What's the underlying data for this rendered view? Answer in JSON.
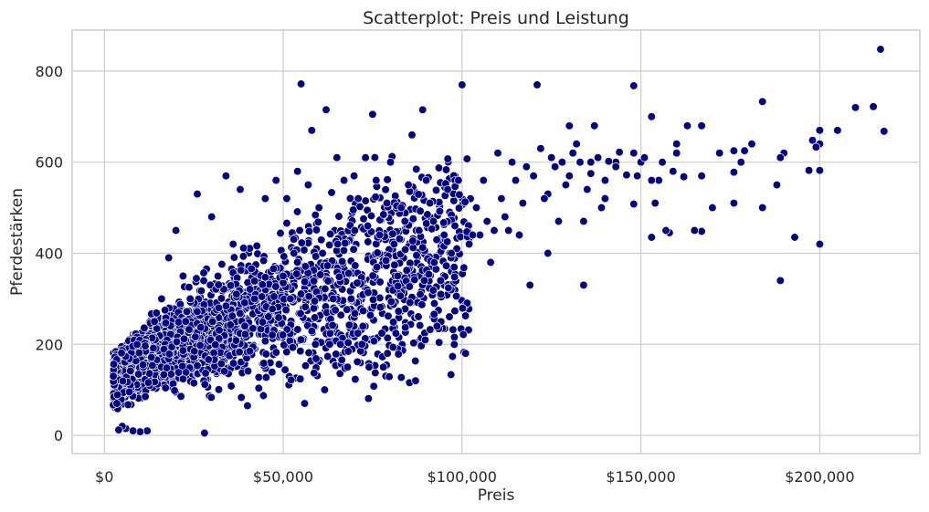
{
  "chart_data": {
    "type": "scatter",
    "title": "Scatterplot: Preis und Leistung",
    "xlabel": "Preis",
    "ylabel": "Pferdestärken",
    "xlim": [
      -9000,
      228000
    ],
    "ylim": [
      -40,
      890
    ],
    "x_ticks": [
      {
        "value": 0,
        "label": "$0"
      },
      {
        "value": 50000,
        "label": "$50,000"
      },
      {
        "value": 100000,
        "label": "$100,000"
      },
      {
        "value": 150000,
        "label": "$150,000"
      },
      {
        "value": 200000,
        "label": "$200,000"
      }
    ],
    "y_ticks": [
      {
        "value": 0,
        "label": "0"
      },
      {
        "value": 200,
        "label": "200"
      },
      {
        "value": 400,
        "label": "400"
      },
      {
        "value": 600,
        "label": "600"
      },
      {
        "value": 800,
        "label": "800"
      }
    ],
    "grid": true,
    "marker_color": "#000080",
    "marker_edge_color": "#ffffff",
    "points": [
      [
        217000,
        848
      ],
      [
        218000,
        668
      ],
      [
        215000,
        722
      ],
      [
        210000,
        720
      ],
      [
        205000,
        670
      ],
      [
        200000,
        670
      ],
      [
        200000,
        640
      ],
      [
        198000,
        648
      ],
      [
        199000,
        633
      ],
      [
        200000,
        582
      ],
      [
        197000,
        582
      ],
      [
        200000,
        420
      ],
      [
        193000,
        435
      ],
      [
        190000,
        620
      ],
      [
        189000,
        610
      ],
      [
        188000,
        550
      ],
      [
        189000,
        340
      ],
      [
        184000,
        733
      ],
      [
        184000,
        500
      ],
      [
        181000,
        640
      ],
      [
        179000,
        625
      ],
      [
        178000,
        600
      ],
      [
        176000,
        625
      ],
      [
        176000,
        578
      ],
      [
        176000,
        510
      ],
      [
        172000,
        620
      ],
      [
        170000,
        500
      ],
      [
        167000,
        680
      ],
      [
        167000,
        570
      ],
      [
        167000,
        448
      ],
      [
        163000,
        680
      ],
      [
        162000,
        568
      ],
      [
        165000,
        450
      ],
      [
        160000,
        640
      ],
      [
        160000,
        620
      ],
      [
        159000,
        580
      ],
      [
        158000,
        445
      ],
      [
        157000,
        450
      ],
      [
        156000,
        600
      ],
      [
        155000,
        560
      ],
      [
        153000,
        700
      ],
      [
        153000,
        560
      ],
      [
        154000,
        510
      ],
      [
        153000,
        435
      ],
      [
        150000,
        600
      ],
      [
        151000,
        610
      ],
      [
        149000,
        570
      ],
      [
        148000,
        768
      ],
      [
        148000,
        620
      ],
      [
        148000,
        508
      ],
      [
        146000,
        572
      ],
      [
        144000,
        622
      ],
      [
        143000,
        600
      ],
      [
        143000,
        590
      ],
      [
        141000,
        602
      ],
      [
        140000,
        560
      ],
      [
        140000,
        520
      ],
      [
        139000,
        500
      ],
      [
        138000,
        610
      ],
      [
        137000,
        680
      ],
      [
        136000,
        600
      ],
      [
        136000,
        575
      ],
      [
        135000,
        540
      ],
      [
        134000,
        470
      ],
      [
        134000,
        330
      ],
      [
        133000,
        600
      ],
      [
        132000,
        640
      ],
      [
        131000,
        620
      ],
      [
        130000,
        680
      ],
      [
        130000,
        570
      ],
      [
        129000,
        550
      ],
      [
        128000,
        600
      ],
      [
        127000,
        470
      ],
      [
        126000,
        590
      ],
      [
        125000,
        610
      ],
      [
        124000,
        530
      ],
      [
        124000,
        400
      ],
      [
        123000,
        520
      ],
      [
        122000,
        630
      ],
      [
        121000,
        770
      ],
      [
        120000,
        570
      ],
      [
        119000,
        330
      ],
      [
        118000,
        590
      ],
      [
        117000,
        510
      ],
      [
        116000,
        440
      ],
      [
        115000,
        560
      ],
      [
        114000,
        600
      ],
      [
        113000,
        450
      ],
      [
        112000,
        480
      ],
      [
        111000,
        520
      ],
      [
        110000,
        620
      ],
      [
        109000,
        450
      ],
      [
        108000,
        380
      ],
      [
        107000,
        470
      ],
      [
        106000,
        560
      ],
      [
        105000,
        440
      ],
      [
        104000,
        500
      ],
      [
        103000,
        440
      ],
      [
        102000,
        420
      ],
      [
        101000,
        180
      ],
      [
        100000,
        770
      ],
      [
        99000,
        560
      ],
      [
        98000,
        460
      ],
      [
        97000,
        400
      ],
      [
        96000,
        540
      ],
      [
        95000,
        440
      ],
      [
        94000,
        340
      ],
      [
        93000,
        240
      ],
      [
        92000,
        470
      ],
      [
        91000,
        510
      ],
      [
        90000,
        560
      ],
      [
        89000,
        715
      ],
      [
        88000,
        450
      ],
      [
        87000,
        120
      ],
      [
        86000,
        660
      ],
      [
        85000,
        550
      ],
      [
        84000,
        470
      ],
      [
        83000,
        500
      ],
      [
        82000,
        350
      ],
      [
        81000,
        420
      ],
      [
        80000,
        600
      ],
      [
        79000,
        510
      ],
      [
        78000,
        150
      ],
      [
        77000,
        440
      ],
      [
        76000,
        560
      ],
      [
        75000,
        705
      ],
      [
        74000,
        150
      ],
      [
        73000,
        610
      ],
      [
        72000,
        200
      ],
      [
        71000,
        520
      ],
      [
        70000,
        450
      ],
      [
        69000,
        300
      ],
      [
        68000,
        150
      ],
      [
        67000,
        560
      ],
      [
        66000,
        200
      ],
      [
        65000,
        610
      ],
      [
        64000,
        300
      ],
      [
        63000,
        200
      ],
      [
        62000,
        715
      ],
      [
        61000,
        400
      ],
      [
        60000,
        500
      ],
      [
        59000,
        200
      ],
      [
        58000,
        670
      ],
      [
        57000,
        550
      ],
      [
        56000,
        70
      ],
      [
        55000,
        772
      ],
      [
        54000,
        580
      ],
      [
        53000,
        400
      ],
      [
        52000,
        300
      ],
      [
        51000,
        520
      ],
      [
        50000,
        350
      ],
      [
        48000,
        560
      ],
      [
        45000,
        520
      ],
      [
        42000,
        300
      ],
      [
        40000,
        65
      ],
      [
        38000,
        540
      ],
      [
        36000,
        420
      ],
      [
        34000,
        570
      ],
      [
        32000,
        280
      ],
      [
        30000,
        480
      ],
      [
        28000,
        5
      ],
      [
        26000,
        530
      ],
      [
        24000,
        300
      ],
      [
        22000,
        350
      ],
      [
        20000,
        450
      ],
      [
        18000,
        390
      ],
      [
        16000,
        300
      ],
      [
        14000,
        250
      ],
      [
        12000,
        10
      ],
      [
        10000,
        8
      ],
      [
        8000,
        10
      ],
      [
        6000,
        15
      ],
      [
        5000,
        20
      ],
      [
        4000,
        12
      ],
      [
        3500,
        70
      ]
    ]
  }
}
